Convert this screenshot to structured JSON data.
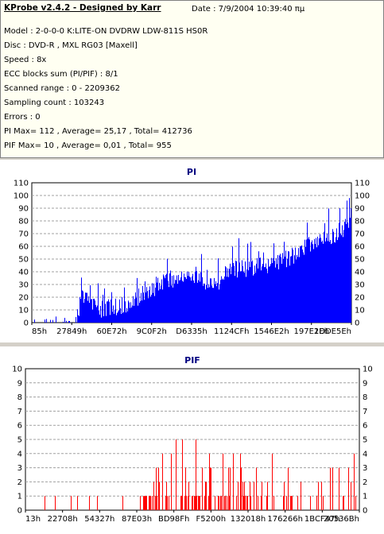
{
  "info": {
    "title": "KProbe v2.4.2 - Designed by Karr",
    "date": "Date : 7/9/2004 10:39:40 πμ",
    "lines": [
      "Model : 2-0-0-0 K:LITE-ON DVDRW LDW-811S   HS0R",
      "Disc : DVD-R , MXL RG03 [Maxell]",
      "Speed : 8x",
      "ECC blocks sum (PI/PIF) : 8/1",
      "Scanned range : 0 - 2209362",
      "Sampling count : 103243",
      "Errors : 0",
      "PI Max= 112 , Average= 25,17 , Total= 412736",
      "PIF Max= 10 , Average= 0,01 , Total= 955"
    ]
  },
  "colors": {
    "series": "#0000ff",
    "series2": "#ff0000",
    "title": "#000080",
    "grid": "#a0a0a0"
  },
  "chart_data": [
    {
      "type": "bar",
      "title": "PI",
      "ylim": [
        0,
        110
      ],
      "yticks": [
        0,
        10,
        20,
        30,
        40,
        50,
        60,
        70,
        80,
        90,
        100,
        110
      ],
      "xtick_labels": [
        "85h",
        "27849h",
        "60E72h",
        "9C0F2h",
        "D6335h",
        "1124CFh",
        "1546E2h",
        "197E2Eh",
        "1DDE5Eh"
      ],
      "grid": "dashed",
      "profile": [
        [
          0,
          3
        ],
        [
          4,
          4
        ],
        [
          8,
          5
        ],
        [
          12,
          4
        ],
        [
          14,
          6
        ],
        [
          15,
          30
        ],
        [
          18,
          22
        ],
        [
          21,
          17
        ],
        [
          24,
          19
        ],
        [
          28,
          19
        ],
        [
          31,
          22
        ],
        [
          33,
          27
        ],
        [
          36,
          31
        ],
        [
          39,
          35
        ],
        [
          42,
          42
        ],
        [
          46,
          40
        ],
        [
          50,
          43
        ],
        [
          54,
          40
        ],
        [
          58,
          41
        ],
        [
          60,
          37
        ],
        [
          61,
          47
        ],
        [
          64,
          49
        ],
        [
          68,
          50
        ],
        [
          72,
          53
        ],
        [
          76,
          52
        ],
        [
          80,
          58
        ],
        [
          84,
          62
        ],
        [
          86,
          67
        ],
        [
          89,
          72
        ],
        [
          92,
          74
        ],
        [
          95,
          76
        ],
        [
          97,
          80
        ],
        [
          100,
          84
        ]
      ],
      "noise": 10,
      "seed": 7
    },
    {
      "type": "bar",
      "title": "PIF",
      "ylim": [
        0,
        10
      ],
      "yticks": [
        0,
        1,
        2,
        3,
        4,
        5,
        6,
        7,
        8,
        9,
        10
      ],
      "xtick_labels": [
        "13h",
        "22708h",
        "54327h",
        "87E03h",
        "BD98Fh",
        "F5200h",
        "132018h",
        "176266h",
        "1BCF47h",
        "20536Bh"
      ],
      "grid": "dashed",
      "sparse_end": 34,
      "seed": 11
    }
  ]
}
